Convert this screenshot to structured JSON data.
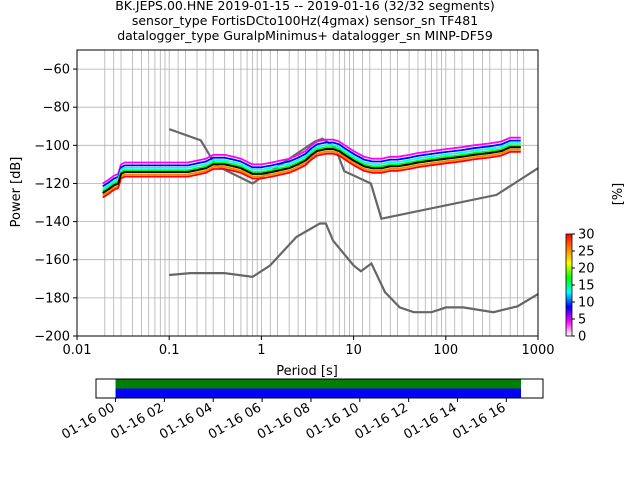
{
  "title_lines": [
    "BK.JEPS.00.HNE   2019-01-15 -- 2019-01-16  (32/32 segments)",
    "sensor_type FortisDCto100Hz(4gmax) sensor_sn TF481",
    "datalogger_type GuralpMinimus+ datalogger_sn MINP-DF59"
  ],
  "chart_data": [
    {
      "type": "heatmap",
      "xlabel": "Period [s]",
      "ylabel": "Power [dB]",
      "xscale": "log",
      "xlim": [
        0.01,
        1000
      ],
      "ylim": [
        -200,
        -50
      ],
      "xticks": [
        {
          "value": 0.01,
          "label": "0.01"
        },
        {
          "value": 0.1,
          "label": "0.1"
        },
        {
          "value": 1,
          "label": "1"
        },
        {
          "value": 10,
          "label": "10"
        },
        {
          "value": 100,
          "label": "100"
        },
        {
          "value": 1000,
          "label": "1000"
        }
      ],
      "yticks": [
        {
          "value": -60,
          "label": "−60"
        },
        {
          "value": -80,
          "label": "−80"
        },
        {
          "value": -100,
          "label": "−100"
        },
        {
          "value": -120,
          "label": "−120"
        },
        {
          "value": -140,
          "label": "−140"
        },
        {
          "value": -160,
          "label": "−160"
        },
        {
          "value": -180,
          "label": "−180"
        },
        {
          "value": -200,
          "label": "−200"
        }
      ],
      "grid": true,
      "period_grid_lines": [
        0.02,
        0.025,
        0.03,
        0.04,
        0.05,
        0.06,
        0.07,
        0.08,
        0.09,
        0.1,
        0.125,
        0.15,
        0.2,
        0.25,
        0.3,
        0.4,
        0.5,
        0.6,
        0.7,
        0.8,
        0.9,
        1,
        1.25,
        1.5,
        2,
        2.5,
        3,
        4,
        5,
        6,
        7,
        8,
        9,
        10,
        12.5,
        15,
        20,
        25,
        30,
        40,
        50,
        60,
        70,
        80,
        90,
        100,
        125,
        150,
        200,
        250,
        300,
        400,
        500,
        600,
        700
      ],
      "series": [
        {
          "name": "",
          "kind": "mean_psd",
          "x": [
            0.019,
            0.022,
            0.025,
            0.028,
            0.03,
            0.033,
            0.04,
            0.05,
            0.07,
            0.1,
            0.13,
            0.16,
            0.2,
            0.25,
            0.3,
            0.35,
            0.4,
            0.5,
            0.6,
            0.8,
            1,
            1.3,
            1.6,
            2,
            2.5,
            3,
            3.5,
            4,
            5,
            6,
            7,
            8,
            10,
            13,
            16,
            20,
            25,
            30,
            40,
            50,
            70,
            100,
            150,
            200,
            300,
            400,
            500,
            600,
            650
          ],
          "y": [
            -125,
            -123,
            -121,
            -120,
            -115,
            -114,
            -114,
            -114,
            -114,
            -114,
            -114,
            -114,
            -113,
            -112,
            -110,
            -110,
            -110,
            -111,
            -112,
            -115,
            -115,
            -114,
            -113,
            -112,
            -110,
            -108,
            -105,
            -103,
            -102,
            -102,
            -103,
            -105,
            -108,
            -111,
            -112,
            -112,
            -111,
            -111,
            -110,
            -109,
            -108,
            -107,
            -106,
            -105,
            -104,
            -103,
            -101,
            -101,
            -101
          ]
        }
      ],
      "noise_models": [
        {
          "name": "",
          "x": [
            0.1,
            0.17,
            0.4,
            0.8,
            1.24,
            2.4,
            4.3,
            5,
            6,
            10,
            12,
            15.6,
            21.9,
            31.6,
            45,
            70,
            101,
            154,
            328,
            600,
            1000
          ],
          "y": [
            -168,
            -167,
            -167,
            -169,
            -163,
            -148,
            -141,
            -141,
            -150,
            -163,
            -166,
            -162,
            -177,
            -185,
            -187.5,
            -187.5,
            -185,
            -185,
            -187.5,
            -184.4,
            -178
          ]
        },
        {
          "name": "",
          "x": [
            0.1,
            0.22,
            0.32,
            0.8,
            3.8,
            4.6,
            6.3,
            7.9,
            15.4,
            20,
            354.8,
            1000
          ],
          "y": [
            -91.5,
            -97.4,
            -110.5,
            -120,
            -98,
            -96.5,
            -101,
            -113.5,
            -120,
            -138.5,
            -126,
            -112
          ]
        }
      ],
      "colorbar": {
        "label": "[%]",
        "range": [
          0,
          30
        ],
        "ticks": [
          0,
          5,
          10,
          15,
          20,
          25,
          30
        ],
        "colors": [
          "#ffffff",
          "#ff00ff",
          "#0000ff",
          "#00ffff",
          "#00ff00",
          "#ffff00",
          "#ff8000",
          "#ff0000"
        ]
      }
    },
    {
      "type": "bar",
      "title": "",
      "xlabel": "",
      "ylabel": "",
      "time_ticks": [
        "01-16 00",
        "01-16 02",
        "01-16 04",
        "01-16 06",
        "01-16 08",
        "01-16 10",
        "01-16 12",
        "01-16 14",
        "01-16 16"
      ],
      "hours_start": 0,
      "hours_end": 16.6,
      "xlim_hours": [
        -0.8,
        17.5
      ],
      "series": [
        {
          "name": "",
          "color": "#008000",
          "start": 0,
          "end": 16.6
        },
        {
          "name": "",
          "color": "#0000ff",
          "start": 0,
          "end": 16.6
        }
      ]
    }
  ]
}
